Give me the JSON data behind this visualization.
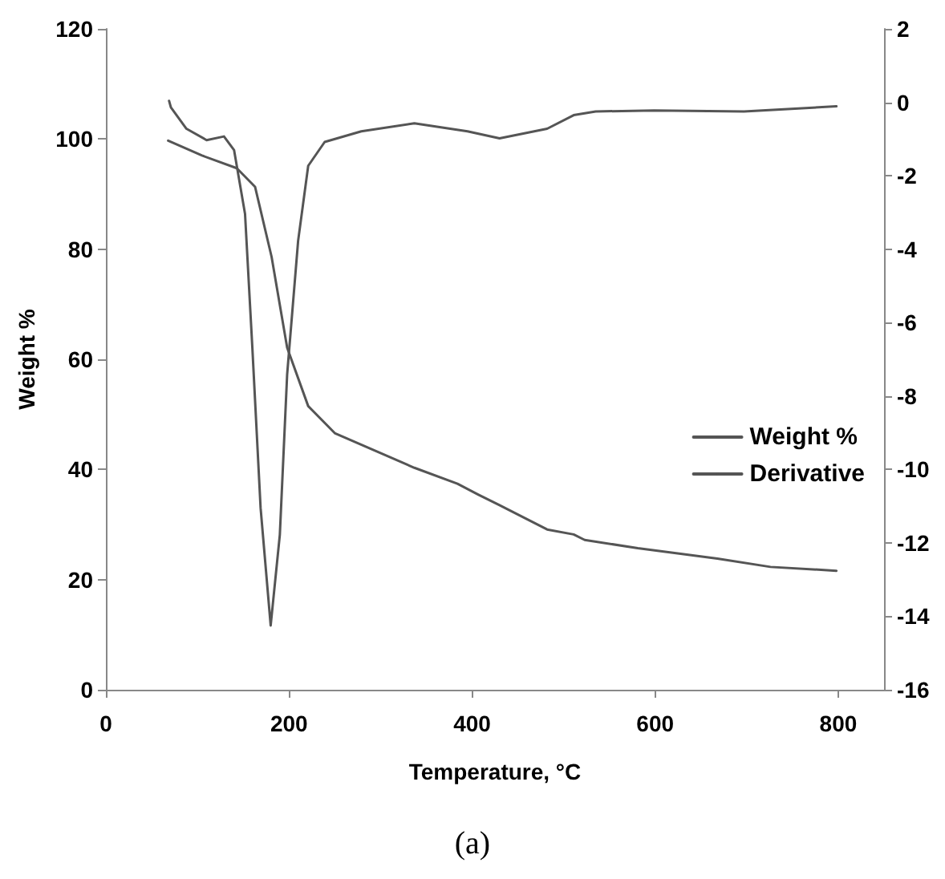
{
  "chart_data": {
    "type": "line",
    "xlabel": "Temperature, °C",
    "ylabel": "Weight %",
    "annotations": [
      "(a)"
    ],
    "xlim": [
      0,
      850
    ],
    "xticks": [
      0,
      200,
      400,
      600,
      800
    ],
    "ylim": [
      0,
      120
    ],
    "yticks": [
      0,
      20,
      40,
      60,
      80,
      100,
      120
    ],
    "y2lim": [
      -16,
      2
    ],
    "y2ticks": [
      -16,
      -14,
      -12,
      -10,
      -8,
      -6,
      -4,
      -2,
      0,
      2
    ],
    "grid": false,
    "legend": "right",
    "marker": "none",
    "line_style": "solid",
    "series": [
      {
        "name": "Weight %",
        "color": "#555555",
        "x": [
          68,
          105,
          143,
          163,
          181,
          198,
          221,
          250,
          337,
          384,
          407,
          430,
          442,
          482,
          511,
          523,
          581,
          668,
          726,
          798
        ],
        "values": [
          99.7,
          97.0,
          94.7,
          91.3,
          78.6,
          62.1,
          51.5,
          46.6,
          40.3,
          37.4,
          35.4,
          33.5,
          32.5,
          29.1,
          28.2,
          27.2,
          25.7,
          23.8,
          22.3,
          21.6
        ]
      },
      {
        "name": "Derivative",
        "color": "#555555",
        "axis": "y2",
        "x": [
          69,
          71,
          88,
          110,
          129,
          140,
          152,
          160,
          169,
          180,
          190,
          198,
          210,
          221,
          239,
          279,
          337,
          395,
          430,
          482,
          511,
          535,
          599,
          697,
          798
        ],
        "values": [
          0.04,
          -0.14,
          -0.72,
          -1.03,
          -0.93,
          -1.3,
          -3.04,
          -6.69,
          -11.05,
          -14.25,
          -11.78,
          -7.41,
          -3.77,
          -1.73,
          -1.08,
          -0.79,
          -0.57,
          -0.79,
          -0.98,
          -0.72,
          -0.35,
          -0.25,
          -0.22,
          -0.25,
          -0.11
        ]
      }
    ]
  }
}
